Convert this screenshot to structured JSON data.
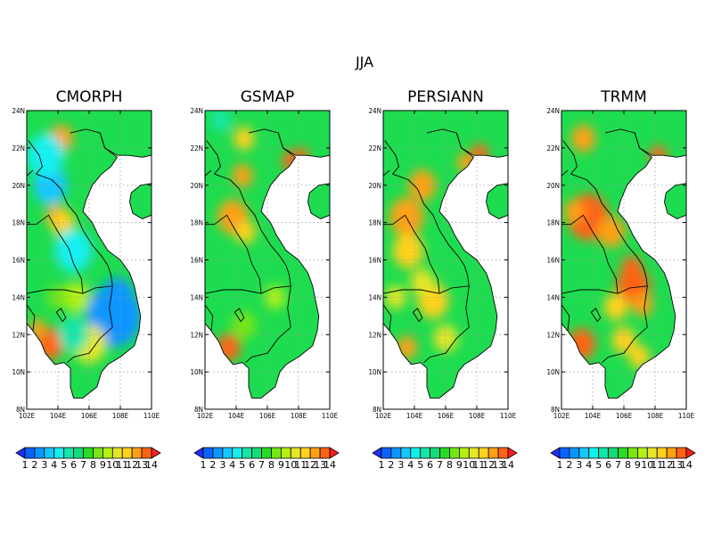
{
  "figure": {
    "title": "JJA",
    "x_ticks": [
      "102E",
      "104E",
      "106E",
      "108E",
      "110E"
    ],
    "y_ticks": [
      "8N",
      "10N",
      "12N",
      "14N",
      "16N",
      "18N",
      "20N",
      "22N",
      "24N"
    ],
    "colorbar_levels": [
      "1",
      "2",
      "3",
      "4",
      "5",
      "6",
      "7",
      "8",
      "9",
      "10",
      "11",
      "12",
      "13",
      "14"
    ],
    "colorbar_colors": [
      "#1e2dff",
      "#0a64ff",
      "#0a96ff",
      "#14c8ff",
      "#14f0f0",
      "#14e6aa",
      "#14dc78",
      "#28dc28",
      "#78e614",
      "#b4f014",
      "#e6e628",
      "#ffd21e",
      "#ffa014",
      "#ff6414",
      "#ff1e1e"
    ],
    "land_color": "#1edc50",
    "ocean_color": "#ffffff"
  },
  "panels": [
    {
      "title": "CMORPH",
      "blobs": [
        {
          "lon": 104.2,
          "lat": 22.5,
          "r": 0.7,
          "level": 12
        },
        {
          "lon": 103.9,
          "lat": 18.3,
          "r": 0.6,
          "level": 12
        },
        {
          "lon": 104.3,
          "lat": 18.0,
          "r": 0.7,
          "level": 11
        },
        {
          "lon": 103.5,
          "lat": 20.0,
          "r": 1.0,
          "level": 3
        },
        {
          "lon": 103.2,
          "lat": 21.6,
          "r": 1.1,
          "level": 4
        },
        {
          "lon": 105.0,
          "lat": 16.5,
          "r": 1.1,
          "level": 4
        },
        {
          "lon": 107.6,
          "lat": 13.0,
          "r": 1.6,
          "level": 2
        },
        {
          "lon": 107.8,
          "lat": 14.0,
          "r": 1.0,
          "level": 2
        },
        {
          "lon": 103.5,
          "lat": 11.5,
          "r": 0.8,
          "level": 13
        },
        {
          "lon": 102.7,
          "lat": 12.3,
          "r": 0.5,
          "level": 12
        },
        {
          "lon": 106.0,
          "lat": 11.5,
          "r": 1.0,
          "level": 10
        },
        {
          "lon": 105.0,
          "lat": 12.0,
          "r": 0.9,
          "level": 5
        },
        {
          "lon": 105.2,
          "lat": 14.0,
          "r": 0.8,
          "level": 9
        },
        {
          "lon": 104.0,
          "lat": 14.0,
          "r": 0.6,
          "level": 8
        }
      ]
    },
    {
      "title": "GSMAP",
      "blobs": [
        {
          "lon": 103.8,
          "lat": 18.3,
          "r": 0.9,
          "level": 12
        },
        {
          "lon": 104.6,
          "lat": 17.5,
          "r": 0.6,
          "level": 11
        },
        {
          "lon": 104.4,
          "lat": 20.5,
          "r": 0.6,
          "level": 12
        },
        {
          "lon": 104.5,
          "lat": 22.5,
          "r": 0.6,
          "level": 11
        },
        {
          "lon": 107.5,
          "lat": 21.3,
          "r": 0.5,
          "level": 13
        },
        {
          "lon": 108.2,
          "lat": 21.6,
          "r": 0.4,
          "level": 13
        },
        {
          "lon": 103.5,
          "lat": 11.3,
          "r": 0.7,
          "level": 13
        },
        {
          "lon": 103.0,
          "lat": 23.5,
          "r": 0.6,
          "level": 5
        },
        {
          "lon": 106.5,
          "lat": 14.0,
          "r": 0.6,
          "level": 9
        },
        {
          "lon": 104.5,
          "lat": 12.5,
          "r": 0.7,
          "level": 8
        }
      ]
    },
    {
      "title": "PERSIANN",
      "blobs": [
        {
          "lon": 103.5,
          "lat": 18.3,
          "r": 1.0,
          "level": 12
        },
        {
          "lon": 104.5,
          "lat": 20.0,
          "r": 0.8,
          "level": 12
        },
        {
          "lon": 103.6,
          "lat": 16.5,
          "r": 0.9,
          "level": 11
        },
        {
          "lon": 105.2,
          "lat": 13.8,
          "r": 0.9,
          "level": 11
        },
        {
          "lon": 104.5,
          "lat": 14.8,
          "r": 0.7,
          "level": 10
        },
        {
          "lon": 107.3,
          "lat": 21.2,
          "r": 0.5,
          "level": 12
        },
        {
          "lon": 108.2,
          "lat": 21.7,
          "r": 0.5,
          "level": 13
        },
        {
          "lon": 103.5,
          "lat": 11.3,
          "r": 0.6,
          "level": 12
        },
        {
          "lon": 106.0,
          "lat": 11.8,
          "r": 0.7,
          "level": 10
        },
        {
          "lon": 102.8,
          "lat": 14.0,
          "r": 0.6,
          "level": 10
        }
      ]
    },
    {
      "title": "TRMM",
      "blobs": [
        {
          "lon": 103.7,
          "lat": 18.3,
          "r": 1.2,
          "level": 13
        },
        {
          "lon": 105.2,
          "lat": 17.5,
          "r": 0.8,
          "level": 12
        },
        {
          "lon": 102.8,
          "lat": 18.6,
          "r": 0.6,
          "level": 12
        },
        {
          "lon": 106.6,
          "lat": 14.6,
          "r": 1.0,
          "level": 13
        },
        {
          "lon": 106.5,
          "lat": 15.6,
          "r": 0.6,
          "level": 13
        },
        {
          "lon": 107.2,
          "lat": 13.6,
          "r": 0.6,
          "level": 12
        },
        {
          "lon": 105.5,
          "lat": 13.5,
          "r": 0.7,
          "level": 11
        },
        {
          "lon": 103.3,
          "lat": 11.5,
          "r": 0.8,
          "level": 13
        },
        {
          "lon": 103.4,
          "lat": 22.5,
          "r": 0.7,
          "level": 12
        },
        {
          "lon": 108.2,
          "lat": 21.6,
          "r": 0.5,
          "level": 13
        },
        {
          "lon": 106.0,
          "lat": 11.7,
          "r": 0.7,
          "level": 11
        },
        {
          "lon": 107.0,
          "lat": 10.8,
          "r": 0.6,
          "level": 11
        }
      ]
    }
  ]
}
